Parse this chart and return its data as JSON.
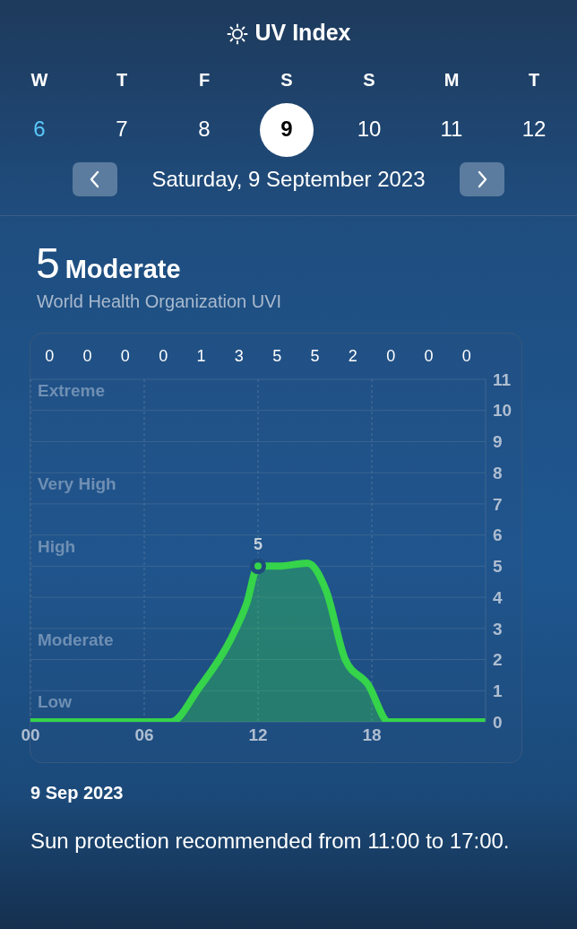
{
  "chart_data": {
    "type": "area",
    "title": "UV Index",
    "subtitle": "Saturday, 9 September 2023",
    "annotations": [
      "W",
      "T",
      "F",
      "S",
      "S",
      "M",
      "T",
      "6",
      "7",
      "8",
      "9",
      "10",
      "11",
      "12",
      "5",
      "Moderate",
      "World Health Organization UVI",
      "0",
      "0",
      "0",
      "0",
      "1",
      "3",
      "5",
      "5",
      "2",
      "0",
      "0",
      "0",
      "9 Sep 2023",
      "Sun protection recommended from 11:00 to 17:00.",
      "Extreme",
      "Very High",
      "High",
      "Moderate",
      "Low"
    ],
    "xlim": [
      0,
      24
    ],
    "xticks": [
      {
        "value": 0,
        "label": "00"
      },
      {
        "value": 6,
        "label": "06"
      },
      {
        "value": 12,
        "label": "12"
      },
      {
        "value": 18,
        "label": "18"
      }
    ],
    "ylim": [
      0,
      11
    ],
    "yticks": [
      0,
      1,
      2,
      3,
      4,
      5,
      6,
      7,
      8,
      9,
      10,
      11
    ],
    "grid": true,
    "line_style": "solid",
    "series": [
      {
        "color": "#35d44a",
        "marker": "none",
        "x": [
          0,
          7,
          7.4,
          8.9,
          10.6,
          11.4,
          12,
          13.1,
          14.6,
          15.6,
          16.6,
          17.8,
          18.9,
          24
        ],
        "values": [
          0,
          0,
          0,
          1.1,
          2.7,
          3.8,
          5,
          5,
          5.1,
          4.2,
          2,
          1.2,
          0,
          0
        ]
      },
      {
        "type": "scatter",
        "color": "#35d44a",
        "marker": "circle",
        "x": [
          12
        ],
        "values": [
          5
        ],
        "value_labels": [
          "5"
        ]
      }
    ]
  }
}
